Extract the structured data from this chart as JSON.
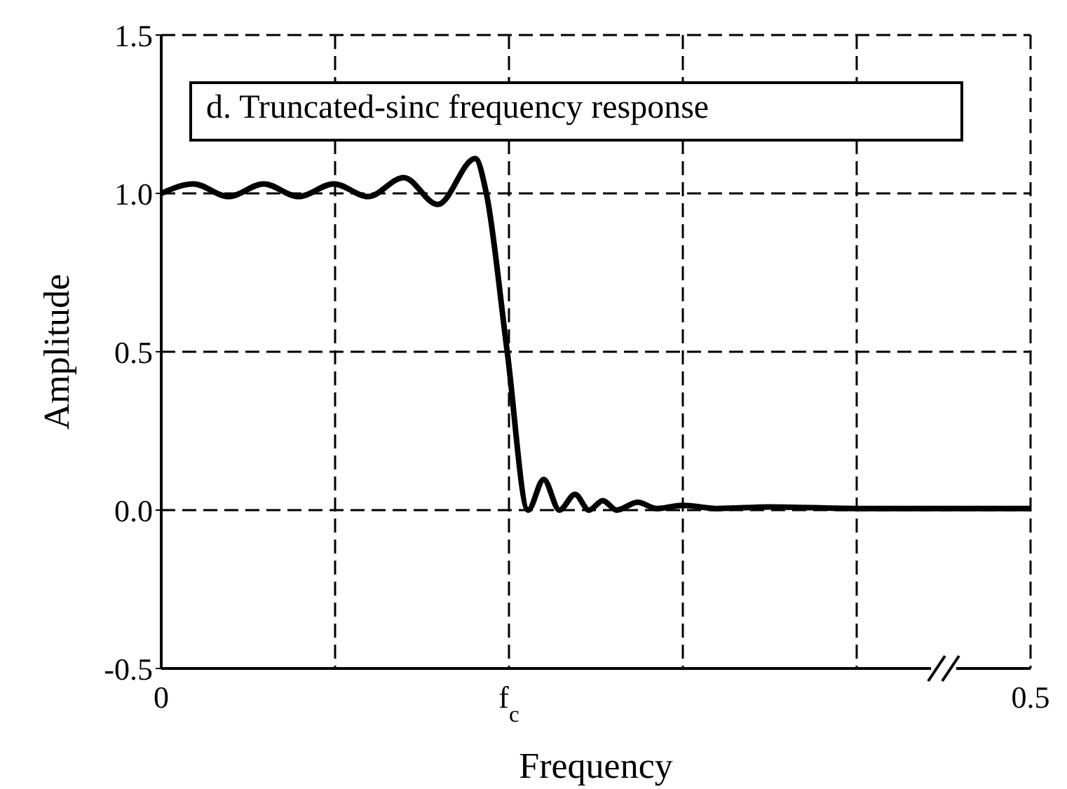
{
  "chart_data": {
    "type": "line",
    "title": "d. Truncated-sinc frequency response",
    "xlabel": "Frequency",
    "ylabel": "Amplitude",
    "x": [
      0,
      0.0185,
      0.0387,
      0.0589,
      0.079,
      0.0992,
      0.119,
      0.1395,
      0.159,
      0.1806,
      0.187,
      0.199,
      0.211,
      0.22,
      0.229,
      0.238,
      0.246,
      0.254,
      0.262,
      0.274,
      0.285,
      0.3,
      0.32,
      0.35,
      0.4,
      0.45,
      0.5
    ],
    "series": [
      {
        "color": "#000000",
        "values": [
          1.0,
          1.03,
          0.99,
          1.03,
          0.99,
          1.03,
          0.99,
          1.05,
          0.965,
          1.11,
          1.0,
          0.5,
          0.0,
          0.097,
          0.0,
          0.05,
          0.0,
          0.03,
          0.0,
          0.025,
          0.005,
          0.015,
          0.005,
          0.01,
          0.005,
          0.005,
          0.005
        ]
      }
    ],
    "xlim": [
      0,
      0.5
    ],
    "xticks": [
      {
        "value": 0,
        "label": "0"
      },
      {
        "value": 0.1,
        "label": null
      },
      {
        "value": 0.2,
        "label": "f$_{c}$"
      },
      {
        "value": 0.3,
        "label": null
      },
      {
        "value": 0.4,
        "label": null
      },
      {
        "value": 0.5,
        "label": "0.5"
      }
    ],
    "ylim": [
      -0.5,
      1.5
    ],
    "yticks": [
      {
        "value": -0.5,
        "label": "-0.5"
      },
      {
        "value": 0,
        "label": "0.0"
      },
      {
        "value": 0.5,
        "label": "0.5"
      },
      {
        "value": 1,
        "label": "1.0"
      },
      {
        "value": 1.5,
        "label": "1.5"
      }
    ],
    "grid": true,
    "line_style": "solid",
    "marker": "none"
  }
}
